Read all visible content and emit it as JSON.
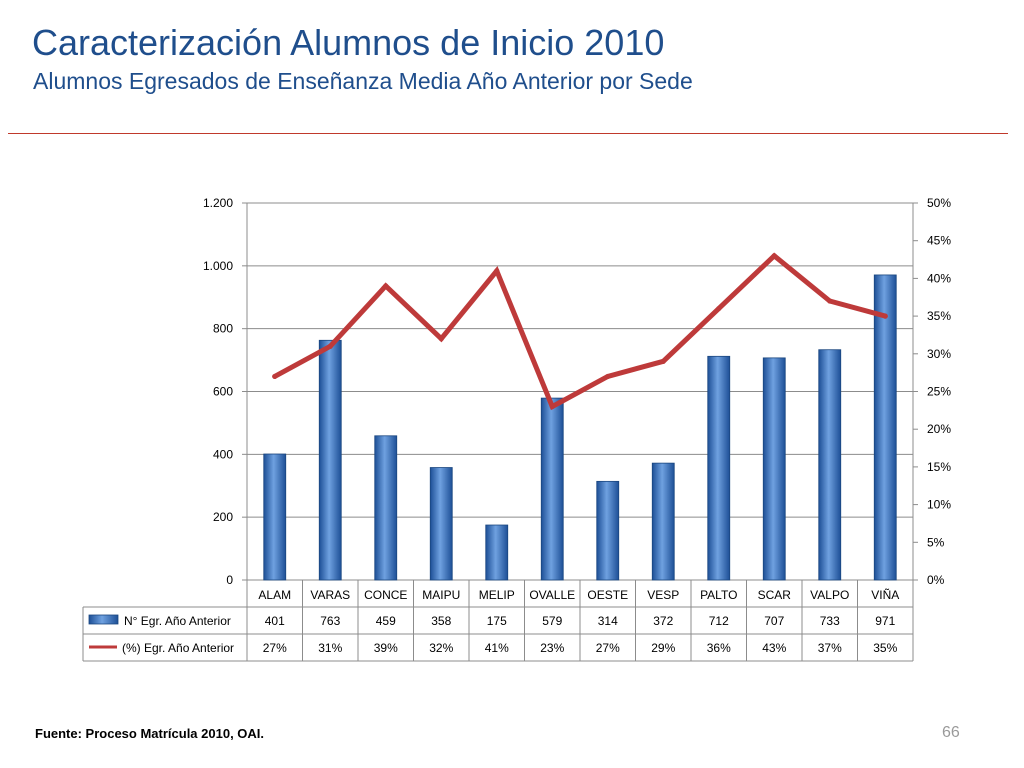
{
  "slide": {
    "title": "Caracterización Alumnos de Inicio 2010",
    "subtitle": "Alumnos Egresados de Enseñanza Media Año Anterior por Sede",
    "source": "Fuente: Proceso Matrícula 2010, OAI.",
    "page_number": "66"
  },
  "colors": {
    "title": "#1f4e8c",
    "rule": "#c0392b",
    "bar": "#3a74c0",
    "line": "#be3a3a"
  },
  "chart_data": {
    "type": "bar",
    "categories": [
      "ALAM",
      "VARAS",
      "CONCE",
      "MAIPU",
      "MELIP",
      "OVALLE",
      "OESTE",
      "VESP",
      "PALTO",
      "SCAR",
      "VALPO",
      "VIÑA"
    ],
    "series": [
      {
        "name": "N° Egr. Año Anterior",
        "type": "bar",
        "axis": "left",
        "values": [
          401,
          763,
          459,
          358,
          175,
          579,
          314,
          372,
          712,
          707,
          733,
          971
        ],
        "labels": [
          "401",
          "763",
          "459",
          "358",
          "175",
          "579",
          "314",
          "372",
          "712",
          "707",
          "733",
          "971"
        ]
      },
      {
        "name": "(%) Egr. Año Anterior",
        "type": "line",
        "axis": "right",
        "values": [
          27,
          31,
          39,
          32,
          41,
          23,
          27,
          29,
          36,
          43,
          37,
          35
        ],
        "labels": [
          "27%",
          "31%",
          "39%",
          "32%",
          "41%",
          "23%",
          "27%",
          "29%",
          "36%",
          "43%",
          "37%",
          "35%"
        ]
      }
    ],
    "y_left": {
      "ylim": [
        0,
        1200
      ],
      "ticks": [
        0,
        200,
        400,
        600,
        800,
        1000,
        1200
      ],
      "tick_labels": [
        "0",
        "200",
        "400",
        "600",
        "800",
        "1.000",
        "1.200"
      ]
    },
    "y_right": {
      "ylim": [
        0,
        50
      ],
      "ticks": [
        0,
        5,
        10,
        15,
        20,
        25,
        30,
        35,
        40,
        45,
        50
      ],
      "tick_labels": [
        "0%",
        "5%",
        "10%",
        "15%",
        "20%",
        "25%",
        "30%",
        "35%",
        "40%",
        "45%",
        "50%"
      ]
    },
    "grid": true,
    "legend": "data-table"
  }
}
